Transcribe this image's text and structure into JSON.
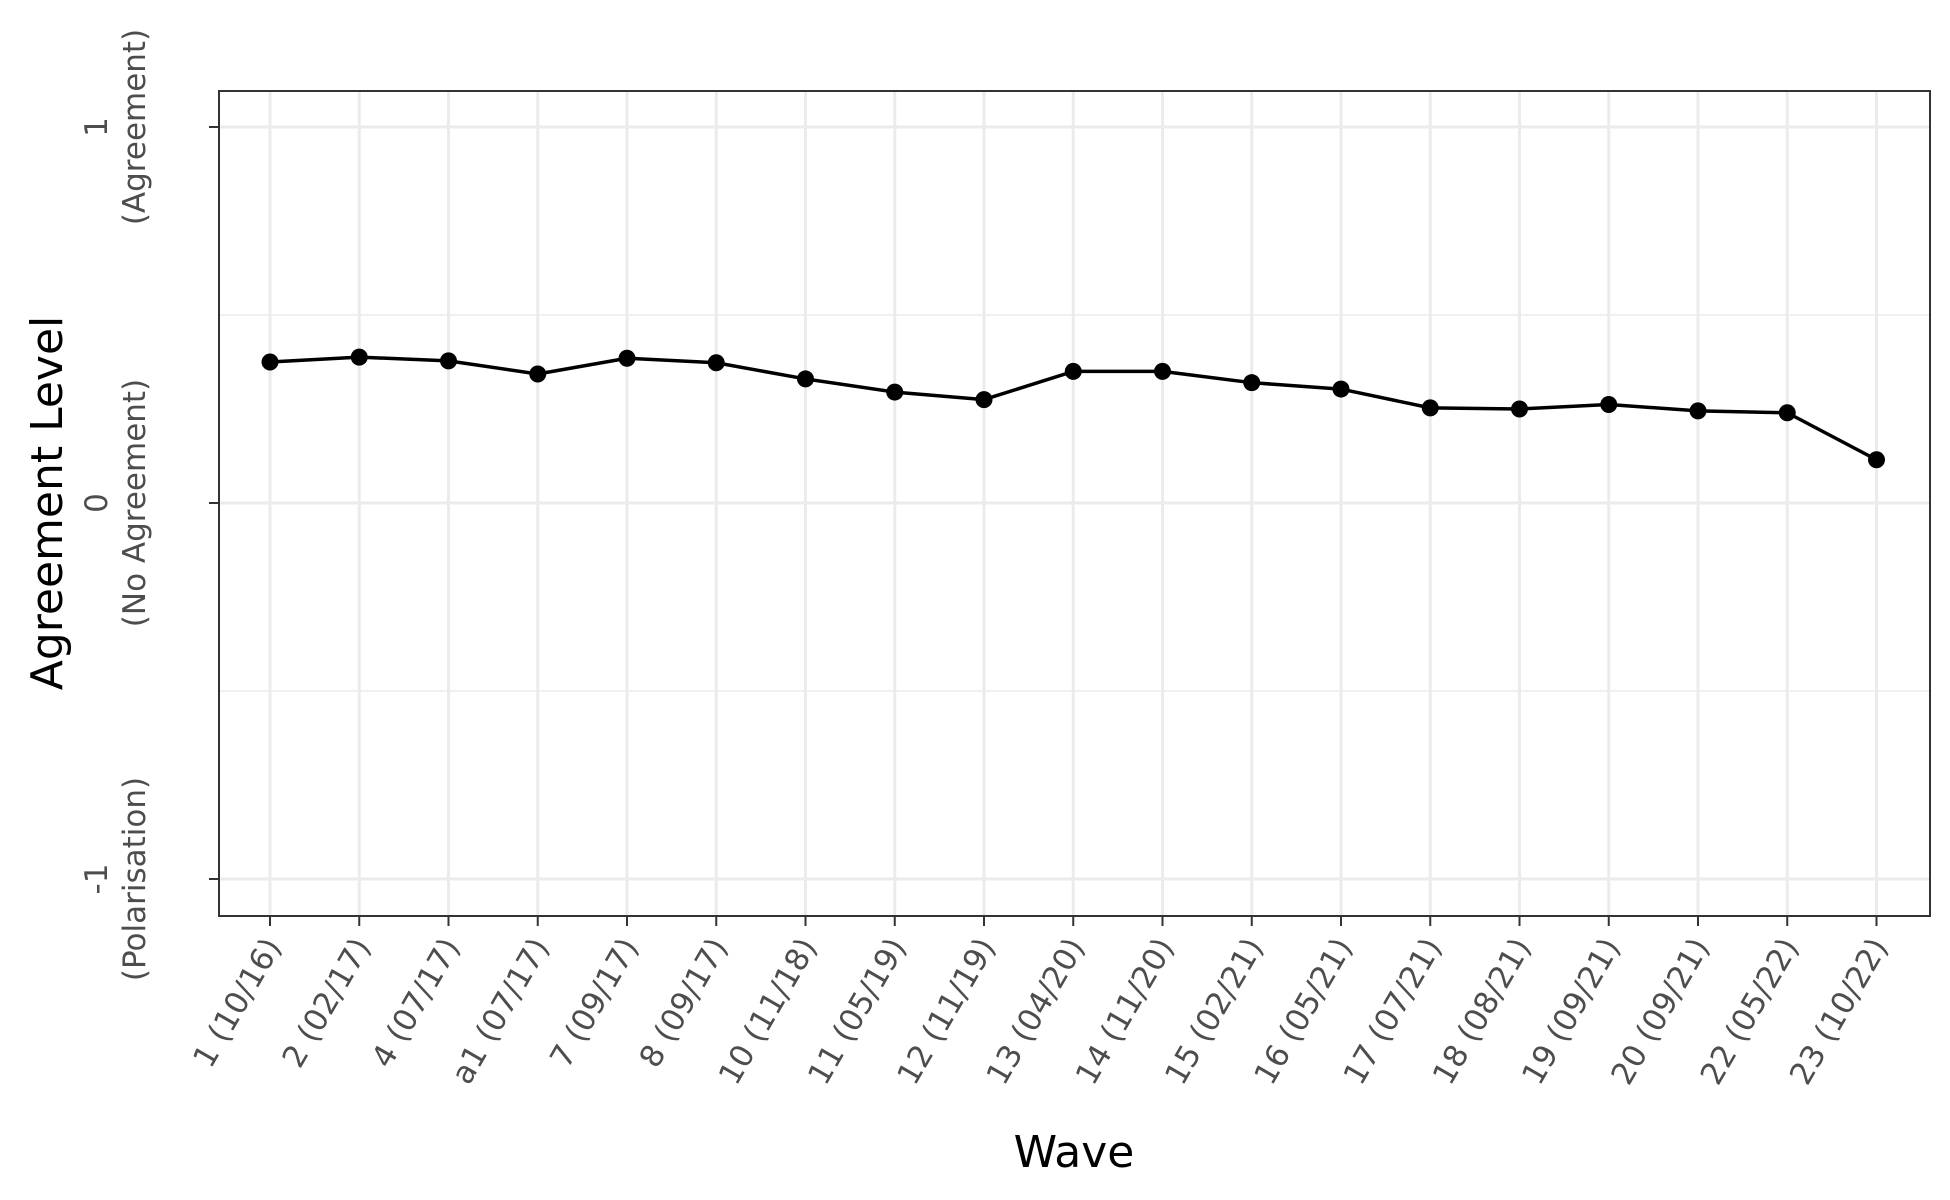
{
  "chart_data": {
    "type": "line",
    "xlabel": "Wave",
    "ylabel": "Agreement Level",
    "ylim": [
      -1.1,
      1.1
    ],
    "y_ticks": [
      {
        "value": 1,
        "label": "1",
        "sublabel": "(Agreement)"
      },
      {
        "value": 0,
        "label": "0",
        "sublabel": "(No Agreement)"
      },
      {
        "value": -1,
        "label": "-1",
        "sublabel": "(Polarisation)"
      }
    ],
    "y_minor_grid": [
      0.5,
      -0.5
    ],
    "grid": true,
    "categories": [
      "1 (10/16)",
      "2 (02/17)",
      "4 (07/17)",
      "a1 (07/17)",
      "7 (09/17)",
      "8 (09/17)",
      "10 (11/18)",
      "11 (05/19)",
      "12 (11/19)",
      "13 (04/20)",
      "14 (11/20)",
      "15 (02/21)",
      "16 (05/21)",
      "17 (07/21)",
      "18 (08/21)",
      "19 (09/21)",
      "20 (09/21)",
      "22 (05/22)",
      "23 (10/22)"
    ],
    "series": [
      {
        "values": [
          0.375,
          0.388,
          0.378,
          0.343,
          0.385,
          0.373,
          0.33,
          0.295,
          0.275,
          0.35,
          0.35,
          0.32,
          0.303,
          0.253,
          0.25,
          0.262,
          0.245,
          0.24,
          0.115
        ]
      }
    ],
    "colors": {
      "line": "#000000",
      "grid": "#ebebeb",
      "panel_border": "#333333",
      "tick_text": "#4d4d4d"
    }
  }
}
